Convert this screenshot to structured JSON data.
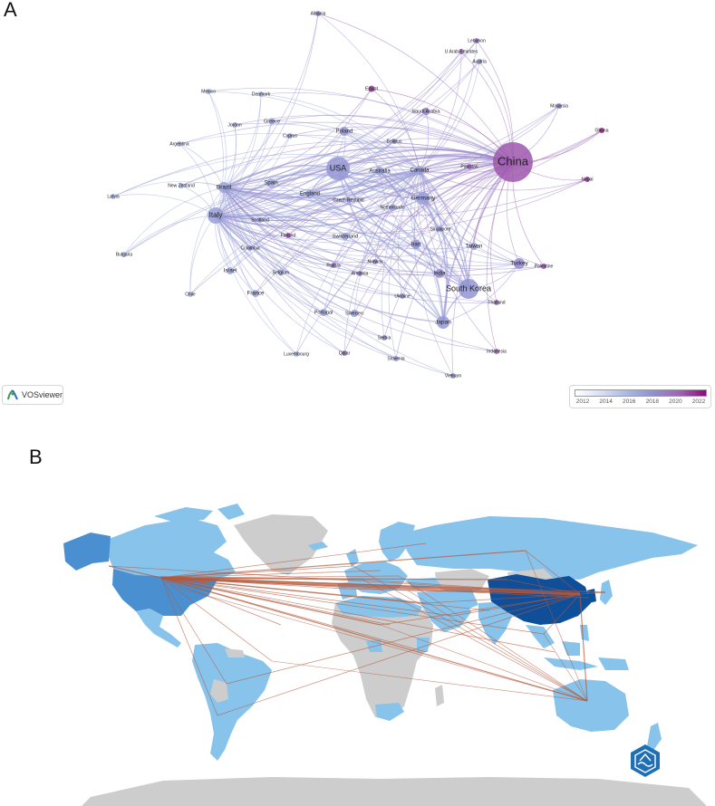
{
  "panels": {
    "a": "A",
    "b": "B"
  },
  "network": {
    "nodes": [
      {
        "name": "China",
        "size": 22,
        "year": 2020.3,
        "font": 13
      },
      {
        "name": "USA",
        "size": 13,
        "year": 2017.6,
        "font": 9
      },
      {
        "name": "South Korea",
        "size": 11,
        "year": 2017.8,
        "font": 9
      },
      {
        "name": "Italy",
        "size": 9,
        "year": 2017.2,
        "font": 8
      },
      {
        "name": "Japan",
        "size": 7,
        "year": 2017.5,
        "font": 6.5
      },
      {
        "name": "Turkey",
        "size": 6,
        "year": 2018.2,
        "font": 6.5
      },
      {
        "name": "Germany",
        "size": 7,
        "year": 2017.4,
        "font": 6.5
      },
      {
        "name": "Brazil",
        "size": 6,
        "year": 2017.1,
        "font": 6.5
      },
      {
        "name": "England",
        "size": 5,
        "year": 2017.0,
        "font": 6
      },
      {
        "name": "Australia",
        "size": 5,
        "year": 2017.3,
        "font": 6
      },
      {
        "name": "Canada",
        "size": 5,
        "year": 2017.2,
        "font": 6
      },
      {
        "name": "Spain",
        "size": 5,
        "year": 2016.8,
        "font": 6
      },
      {
        "name": "Poland",
        "size": 5,
        "year": 2017.6,
        "font": 6
      },
      {
        "name": "Iran",
        "size": 5,
        "year": 2017.9,
        "font": 6
      },
      {
        "name": "India",
        "size": 5,
        "year": 2018.1,
        "font": 6
      },
      {
        "name": "Taiwan",
        "size": 4,
        "year": 2017.4,
        "font": 6
      },
      {
        "name": "France",
        "size": 4,
        "year": 2016.9,
        "font": 6
      },
      {
        "name": "Israel",
        "size": 4,
        "year": 2016.7,
        "font": 6
      },
      {
        "name": "Sweden",
        "size": 4,
        "year": 2017.3,
        "font": 5.5
      },
      {
        "name": "Portugal",
        "size": 4,
        "year": 2017.2,
        "font": 5.5
      },
      {
        "name": "Switzerland",
        "size": 4,
        "year": 2017.5,
        "font": 5.5
      },
      {
        "name": "Saudi Arabia",
        "size": 4,
        "year": 2019.0,
        "font": 5.5
      },
      {
        "name": "Greece",
        "size": 3.5,
        "year": 2017.2,
        "font": 5.5
      },
      {
        "name": "Egypt",
        "size": 3.5,
        "year": 2021.0,
        "font": 5.5
      },
      {
        "name": "Belgium",
        "size": 3.5,
        "year": 2017.0,
        "font": 5
      },
      {
        "name": "Netherlands",
        "size": 3.5,
        "year": 2017.3,
        "font": 5
      },
      {
        "name": "Czech Republic",
        "size": 3,
        "year": 2017.6,
        "font": 5
      },
      {
        "name": "Scotland",
        "size": 3,
        "year": 2016.8,
        "font": 5
      },
      {
        "name": "Serbia",
        "size": 3,
        "year": 2017.8,
        "font": 5
      },
      {
        "name": "Singapore",
        "size": 3,
        "year": 2017.4,
        "font": 5
      },
      {
        "name": "Pakistan",
        "size": 3,
        "year": 2019.5,
        "font": 5
      },
      {
        "name": "Belarus",
        "size": 3,
        "year": 2018.0,
        "font": 5
      },
      {
        "name": "Ukraine",
        "size": 3,
        "year": 2018.0,
        "font": 5
      },
      {
        "name": "Russia",
        "size": 3,
        "year": 2019.2,
        "font": 5
      },
      {
        "name": "Norway",
        "size": 3,
        "year": 2018.6,
        "font": 5
      },
      {
        "name": "Armenia",
        "size": 3,
        "year": 2018.8,
        "font": 5
      },
      {
        "name": "Finland",
        "size": 3,
        "year": 2020.2,
        "font": 5
      },
      {
        "name": "Colombia",
        "size": 3,
        "year": 2017.8,
        "font": 5
      },
      {
        "name": "Cyprus",
        "size": 3,
        "year": 2017.3,
        "font": 5
      },
      {
        "name": "Denmark",
        "size": 3,
        "year": 2016.4,
        "font": 5
      },
      {
        "name": "Mexico",
        "size": 3,
        "year": 2016.2,
        "font": 5
      },
      {
        "name": "Jordan",
        "size": 3,
        "year": 2016.6,
        "font": 5
      },
      {
        "name": "Argentina",
        "size": 3,
        "year": 2016.5,
        "font": 5
      },
      {
        "name": "New Zealand",
        "size": 3,
        "year": 2016.4,
        "font": 5
      },
      {
        "name": "Latvia",
        "size": 3,
        "year": 2015.8,
        "font": 5
      },
      {
        "name": "Bulgaria",
        "size": 3,
        "year": 2016.0,
        "font": 5
      },
      {
        "name": "Chile",
        "size": 3,
        "year": 2016.1,
        "font": 5
      },
      {
        "name": "Luxembourg",
        "size": 3,
        "year": 2016.2,
        "font": 5
      },
      {
        "name": "Qatar",
        "size": 3,
        "year": 2018.8,
        "font": 5
      },
      {
        "name": "Slovenia",
        "size": 3,
        "year": 2017.4,
        "font": 5
      },
      {
        "name": "Vietnam",
        "size": 3,
        "year": 2017.8,
        "font": 5
      },
      {
        "name": "Indonesia",
        "size": 3,
        "year": 2019.8,
        "font": 5
      },
      {
        "name": "Thailand",
        "size": 3,
        "year": 2019.4,
        "font": 5
      },
      {
        "name": "Palestine",
        "size": 3,
        "year": 2020.4,
        "font": 5
      },
      {
        "name": "Nepal",
        "size": 3,
        "year": 2021.0,
        "font": 5
      },
      {
        "name": "Ghana",
        "size": 3,
        "year": 2021.4,
        "font": 5
      },
      {
        "name": "Malaysia",
        "size": 3,
        "year": 2018.8,
        "font": 5
      },
      {
        "name": "Austria",
        "size": 3,
        "year": 2017.5,
        "font": 5
      },
      {
        "name": "U Arab Emirates",
        "size": 3,
        "year": 2019.6,
        "font": 5
      },
      {
        "name": "Lebanon",
        "size": 3,
        "year": 2019.0,
        "font": 5
      },
      {
        "name": "Albania",
        "size": 3,
        "year": 2018.4,
        "font": 5
      }
    ],
    "legend": {
      "ticks": [
        "2012",
        "2014",
        "2016",
        "2018",
        "2020",
        "2022"
      ],
      "colors": [
        "#ffffff",
        "#d8def4",
        "#a7b8e3",
        "#8f8fd0",
        "#a163b6",
        "#8b0a7d"
      ]
    },
    "badge": "VOSviewer"
  },
  "map": {
    "colors": {
      "ocean": "#ffffff",
      "land": "#cdcdcd",
      "low": "#87c3ea",
      "mid": "#4a90d0",
      "high": "#0f4f99",
      "link": "#b5593a"
    },
    "hubs": [
      "China",
      "USA",
      "Australia"
    ]
  }
}
